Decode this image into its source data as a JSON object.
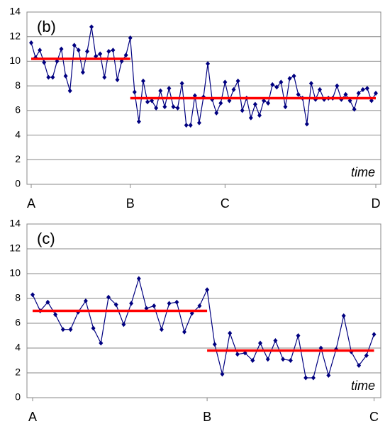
{
  "chart_data": [
    {
      "type": "line",
      "annotation": "(b)",
      "x_label": "time",
      "xlim": [
        0,
        80
      ],
      "xticks": [
        {
          "value": 0,
          "label": "A"
        },
        {
          "value": 23,
          "label": "B"
        },
        {
          "value": 45,
          "label": "C"
        },
        {
          "value": 80,
          "label": "D"
        }
      ],
      "ylim": [
        0,
        14
      ],
      "yticks": [
        0,
        2,
        4,
        6,
        8,
        10,
        12,
        14
      ],
      "grid": true,
      "series": [
        {
          "color": "#000080",
          "values": [
            11.5,
            10.3,
            10.9,
            9.9,
            8.7,
            8.7,
            10.0,
            11.0,
            8.8,
            7.6,
            11.3,
            10.9,
            9.1,
            10.8,
            12.8,
            10.4,
            10.6,
            8.7,
            10.8,
            10.9,
            8.5,
            10.0,
            10.5,
            11.9,
            7.5,
            5.1,
            8.4,
            6.7,
            6.8,
            6.2,
            7.6,
            6.3,
            7.8,
            6.3,
            6.2,
            8.2,
            4.8,
            4.8,
            7.2,
            5.0,
            7.1,
            9.8,
            6.9,
            5.8,
            6.6,
            8.3,
            6.8,
            7.7,
            8.4,
            6.0,
            7.0,
            5.4,
            6.5,
            5.6,
            6.8,
            6.6,
            8.1,
            7.9,
            8.3,
            6.3,
            8.6,
            8.8,
            7.3,
            7.0,
            4.9,
            8.2,
            6.9,
            7.7,
            6.9,
            7.0,
            7.0,
            8.0,
            6.9,
            7.3,
            6.8,
            6.1,
            7.4,
            7.7,
            7.8,
            6.8,
            7.4
          ]
        }
      ],
      "mean_lines": [
        {
          "color": "#ff0000",
          "value": 10.2,
          "x_start": 0,
          "x_end": 23
        },
        {
          "color": "#ff0000",
          "value": 7.0,
          "x_start": 23,
          "x_end": 80
        }
      ]
    },
    {
      "type": "line",
      "annotation": "(c)",
      "x_label": "time",
      "xlim": [
        0,
        45
      ],
      "xticks": [
        {
          "value": 0,
          "label": "A"
        },
        {
          "value": 23,
          "label": "B"
        },
        {
          "value": 45,
          "label": "C"
        }
      ],
      "ylim": [
        0,
        14
      ],
      "yticks": [
        0,
        2,
        4,
        6,
        8,
        10,
        12,
        14
      ],
      "grid": true,
      "series": [
        {
          "color": "#000080",
          "values": [
            8.3,
            7.0,
            7.7,
            6.7,
            5.5,
            5.5,
            6.9,
            7.8,
            5.6,
            4.4,
            8.1,
            7.5,
            5.9,
            7.6,
            9.6,
            7.2,
            7.4,
            5.5,
            7.6,
            7.7,
            5.3,
            6.8,
            7.4,
            8.7,
            4.3,
            1.9,
            5.2,
            3.5,
            3.6,
            3.0,
            4.4,
            3.1,
            4.6,
            3.1,
            3.0,
            5.0,
            1.6,
            1.6,
            4.0,
            1.8,
            3.9,
            6.6,
            3.7,
            2.6,
            3.4,
            5.1
          ]
        }
      ],
      "mean_lines": [
        {
          "color": "#ff0000",
          "value": 7.0,
          "x_start": 0,
          "x_end": 23
        },
        {
          "color": "#ff0000",
          "value": 3.8,
          "x_start": 23,
          "x_end": 45
        }
      ]
    }
  ]
}
